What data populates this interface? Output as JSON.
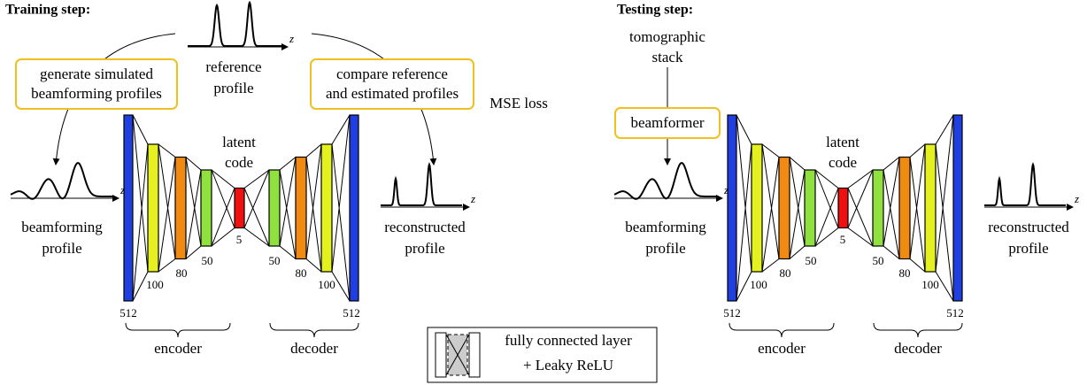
{
  "training": {
    "title": "Training step:",
    "generate_box": [
      "generate simulated",
      "beamforming profiles"
    ],
    "reference_profile": [
      "reference",
      "profile"
    ],
    "reference_axis": "z",
    "compare_box": [
      "compare reference",
      "and estimated profiles"
    ],
    "loss": "MSE loss",
    "input_label": [
      "beamforming",
      "profile"
    ],
    "input_axis": "z",
    "output_label": [
      "reconstructed",
      "profile"
    ],
    "output_axis": "z",
    "network": {
      "layers": [
        512,
        100,
        80,
        50,
        5,
        50,
        80,
        100,
        512
      ],
      "latent": [
        "latent",
        "code"
      ],
      "encoder": "encoder",
      "decoder": "decoder"
    }
  },
  "testing": {
    "title": "Testing step:",
    "source": [
      "tomographic",
      "stack"
    ],
    "beamformer_box": "beamformer",
    "input_label": [
      "beamforming",
      "profile"
    ],
    "input_axis": "z",
    "output_label": [
      "reconstructed",
      "profile"
    ],
    "output_axis": "z",
    "network": {
      "layers": [
        512,
        100,
        80,
        50,
        5,
        50,
        80,
        100,
        512
      ],
      "latent": [
        "latent",
        "code"
      ],
      "encoder": "encoder",
      "decoder": "decoder"
    }
  },
  "legend": [
    "fully connected layer",
    "+ Leaky ReLU"
  ]
}
